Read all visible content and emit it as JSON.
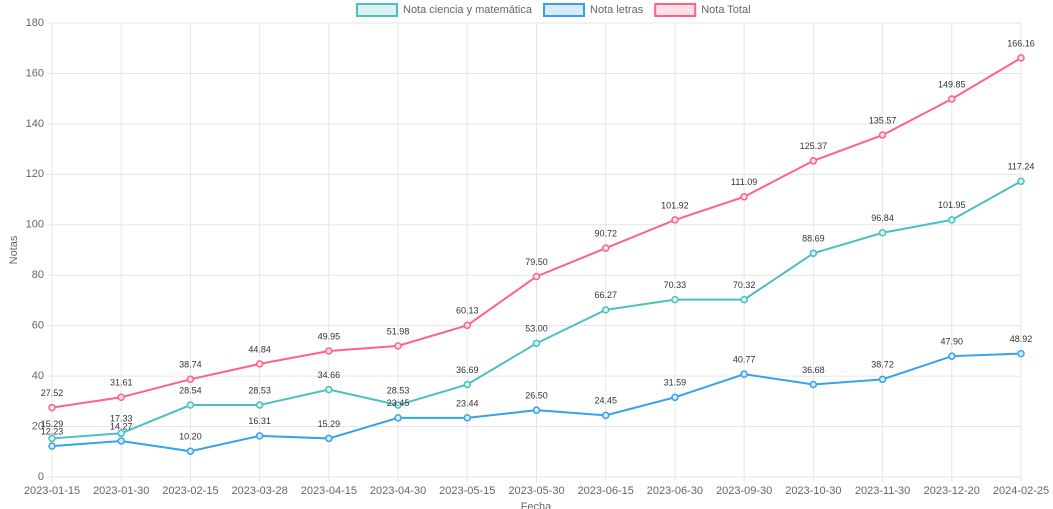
{
  "chart_data": {
    "type": "line",
    "x_label": "Fecha",
    "y_label": "Notas",
    "categories": [
      "2023-01-15",
      "2023-01-30",
      "2023-02-15",
      "2023-03-28",
      "2023-04-15",
      "2023-04-30",
      "2023-05-15",
      "2023-05-30",
      "2023-06-15",
      "2023-06-30",
      "2023-09-30",
      "2023-10-30",
      "2023-11-30",
      "2023-12-20",
      "2024-02-25"
    ],
    "series": [
      {
        "name": "Nota ciencia y matemática",
        "color": "#4bc0c0",
        "fill": "#dbf2f2",
        "values": [
          15.29,
          17.33,
          28.54,
          28.53,
          34.66,
          28.53,
          36.69,
          53.0,
          66.27,
          70.33,
          70.32,
          88.69,
          96.84,
          101.95,
          117.24
        ],
        "value_labels": [
          "15.29",
          "17.33",
          "28.54",
          "28.53",
          "34.66",
          "28.53",
          "36.69",
          "53.00",
          "66.27",
          "70.33",
          "70.32",
          "88.69",
          "96.84",
          "101.95",
          "117.24"
        ]
      },
      {
        "name": "Nota letras",
        "color": "#36a2eb",
        "fill": "#d7ecfb",
        "values": [
          12.23,
          14.27,
          10.2,
          16.31,
          15.29,
          23.45,
          23.44,
          26.5,
          24.45,
          31.59,
          40.77,
          36.68,
          38.72,
          47.9,
          48.92
        ],
        "value_labels": [
          "12.23",
          "14.27",
          "10.20",
          "16.31",
          "15.29",
          "23.45",
          "23.44",
          "26.50",
          "24.45",
          "31.59",
          "40.77",
          "36.68",
          "38.72",
          "47.90",
          "48.92"
        ]
      },
      {
        "name": "Nota Total",
        "color": "#ff6384",
        "fill": "#ffe0e6",
        "values": [
          27.52,
          31.61,
          38.74,
          44.84,
          49.95,
          51.98,
          60.13,
          79.5,
          90.72,
          101.92,
          111.09,
          125.37,
          135.57,
          149.85,
          166.16
        ],
        "value_labels": [
          "27.52",
          "31.61",
          "38.74",
          "44.84",
          "49.95",
          "51.98",
          "60.13",
          "79.50",
          "90.72",
          "101.92",
          "111.09",
          "125.37",
          "135.57",
          "149.85",
          "166.16"
        ]
      }
    ],
    "ylim": [
      0,
      180
    ],
    "yticks": [
      0,
      20,
      40,
      60,
      80,
      100,
      120,
      140,
      160,
      180
    ],
    "grid": true,
    "legend": "top"
  }
}
